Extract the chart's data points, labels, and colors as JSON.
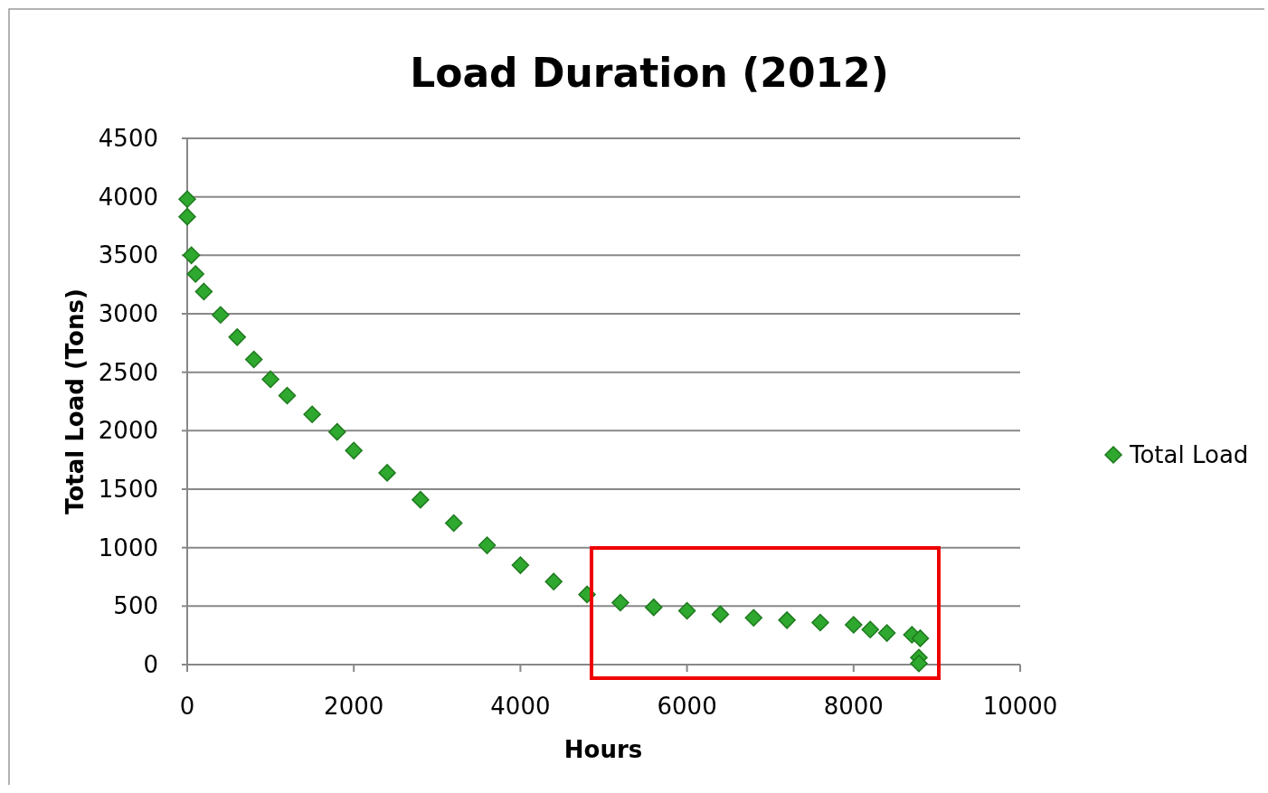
{
  "chart_data": {
    "type": "scatter",
    "title": "Load Duration (2012)",
    "xlabel": "Hours",
    "ylabel": "Total Load (Tons)",
    "xlim": [
      0,
      10000
    ],
    "xticks": [
      0,
      2000,
      4000,
      6000,
      8000,
      10000
    ],
    "ylim": [
      0,
      4500
    ],
    "yticks": [
      0,
      500,
      1000,
      1500,
      2000,
      2500,
      3000,
      3500,
      4000,
      4500
    ],
    "grid": "y",
    "legend": "right",
    "marker": "diamond",
    "series": [
      {
        "name": "Total Load",
        "color": "#2ea82e",
        "x": [
          0,
          0,
          50,
          100,
          200,
          400,
          600,
          800,
          1000,
          1200,
          1500,
          1800,
          2000,
          2400,
          2800,
          3200,
          3600,
          4000,
          4400,
          4800,
          5200,
          5600,
          6000,
          6400,
          6800,
          7200,
          7600,
          8000,
          8200,
          8400,
          8700,
          8800,
          8784,
          8784
        ],
        "values": [
          3980,
          3830,
          3500,
          3340,
          3190,
          2990,
          2800,
          2610,
          2440,
          2300,
          2140,
          1990,
          1830,
          1640,
          1410,
          1210,
          1020,
          850,
          710,
          600,
          530,
          490,
          460,
          430,
          400,
          380,
          360,
          340,
          300,
          270,
          255,
          225,
          60,
          10
        ]
      }
    ]
  }
}
